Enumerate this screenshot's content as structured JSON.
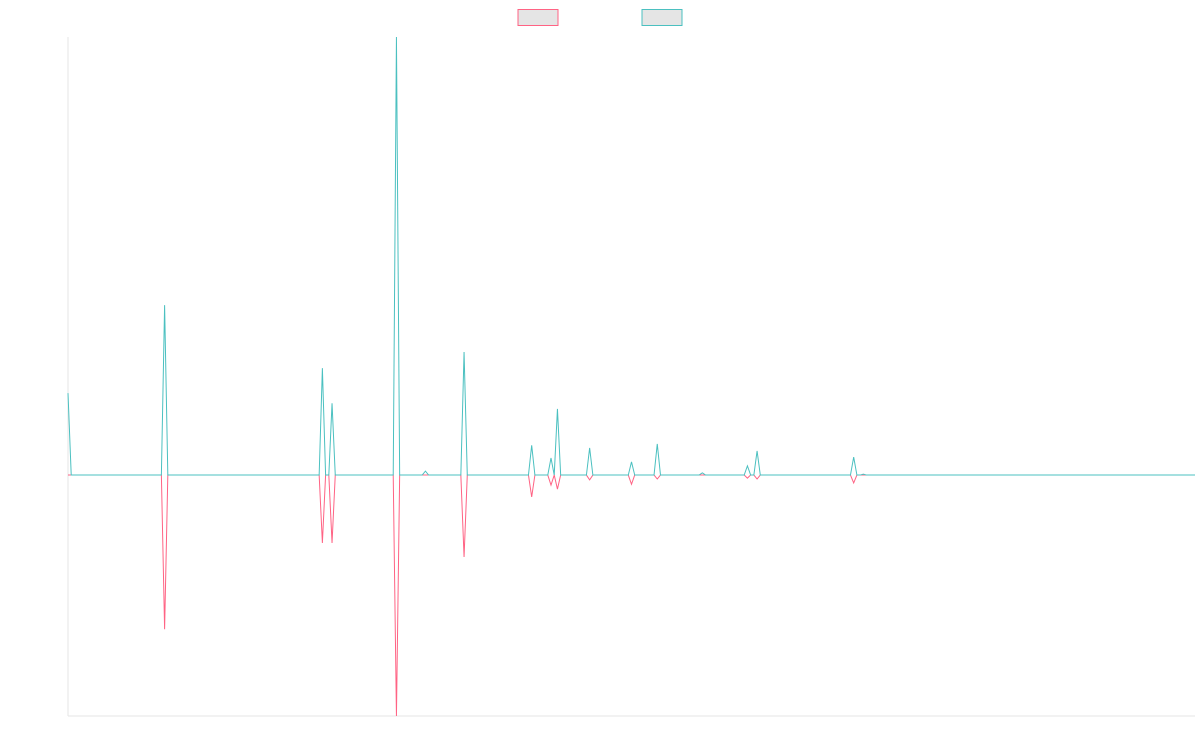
{
  "chart_data": {
    "type": "line",
    "x": [
      0,
      1,
      29,
      30,
      31,
      78,
      79,
      80,
      81,
      82,
      83,
      101,
      102,
      103,
      110,
      111,
      112,
      122,
      123,
      124,
      143,
      144,
      145,
      149,
      150,
      151,
      152,
      153,
      161,
      162,
      163,
      174,
      175,
      176,
      182,
      183,
      184,
      196,
      197,
      198,
      210,
      211,
      212,
      213,
      214,
      215,
      243,
      244,
      245,
      246,
      247,
      248,
      350
    ],
    "xlim": [
      0,
      350
    ],
    "ylim": [
      -550,
      1000
    ],
    "series": [
      {
        "color": "#ff6384",
        "values": [
          0,
          0,
          0,
          -352,
          0,
          0,
          -155,
          0,
          0,
          -155,
          0,
          0,
          -550,
          0,
          0,
          0,
          0,
          0,
          -187,
          0,
          0,
          -50,
          0,
          0,
          -23,
          0,
          -32,
          0,
          0,
          -11,
          0,
          0,
          -21,
          0,
          0,
          -9,
          0,
          0,
          0,
          0,
          0,
          -7,
          0,
          0,
          -9,
          0,
          0,
          -18,
          0,
          0,
          0,
          0,
          0
        ]
      },
      {
        "color": "#4bc0c0",
        "values": [
          187,
          0,
          0,
          388,
          0,
          0,
          244,
          0,
          0,
          164,
          0,
          0,
          1000,
          0,
          0,
          9,
          0,
          0,
          281,
          0,
          0,
          68,
          0,
          0,
          39,
          0,
          151,
          0,
          0,
          62,
          0,
          0,
          30,
          0,
          0,
          71,
          0,
          0,
          5,
          0,
          0,
          21,
          0,
          0,
          55,
          0,
          0,
          41,
          0,
          0,
          2,
          0,
          0
        ]
      }
    ]
  }
}
